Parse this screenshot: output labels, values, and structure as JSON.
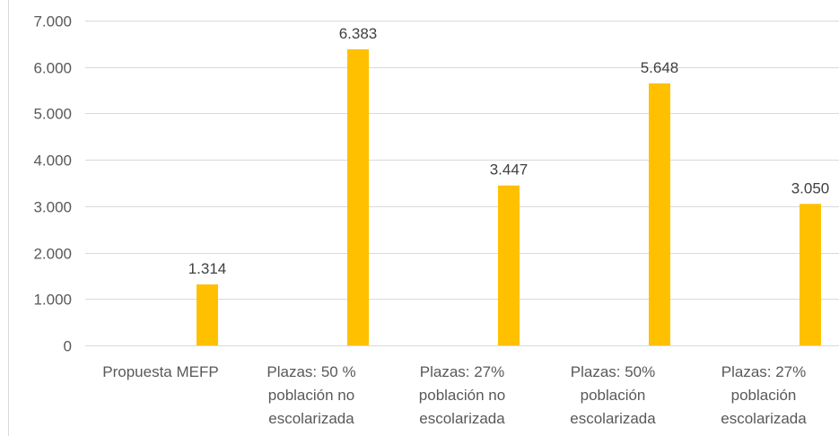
{
  "chart_data": {
    "type": "bar",
    "categories": [
      [
        "Propuesta MEFP"
      ],
      [
        "Plazas: 50 %",
        "población no",
        "escolarizada"
      ],
      [
        "Plazas: 27%",
        "población no",
        "escolarizada"
      ],
      [
        "Plazas: 50%",
        "población",
        "escolarizada"
      ],
      [
        "Plazas: 27%",
        "población",
        "escolarizada"
      ]
    ],
    "values": [
      1314,
      6383,
      3447,
      5648,
      3050
    ],
    "value_labels": [
      "1.314",
      "6.383",
      "3.447",
      "5.648",
      "3.050"
    ],
    "yticks": [
      0,
      1000,
      2000,
      3000,
      4000,
      5000,
      6000,
      7000
    ],
    "ytick_labels": [
      "0",
      "1.000",
      "2.000",
      "3.000",
      "4.000",
      "5.000",
      "6.000",
      "7.000"
    ],
    "ylim": [
      0,
      7000
    ],
    "title": "",
    "xlabel": "",
    "ylabel": "",
    "grid": true,
    "legend": "none",
    "bar_color": "#FFC000"
  }
}
